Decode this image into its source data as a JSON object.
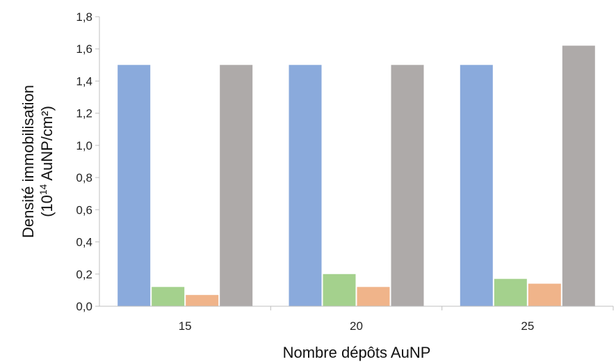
{
  "chart_data": {
    "type": "bar",
    "categories": [
      "15",
      "20",
      "25"
    ],
    "series": [
      {
        "values": [
          1.5,
          1.5,
          1.5
        ],
        "color": "#8aaadc"
      },
      {
        "values": [
          0.12,
          0.2,
          0.17
        ],
        "color": "#a4d18d"
      },
      {
        "values": [
          0.07,
          0.12,
          0.14
        ],
        "color": "#f0b48a"
      },
      {
        "values": [
          1.5,
          1.5,
          1.62
        ],
        "color": "#aeaaa9"
      }
    ],
    "xlabel": "Nombre dépôts AuNP",
    "ylabel_line1": "Densité immobilisation",
    "ylabel_line2_prefix": "(10",
    "ylabel_line2_exponent": "14",
    "ylabel_line2_suffix": " AuNP/cm²)",
    "ylim": [
      0,
      1.8
    ],
    "yticks": [
      "0,0",
      "0,2",
      "0,4",
      "0,6",
      "0,8",
      "1,0",
      "1,2",
      "1,4",
      "1,6",
      "1,8"
    ],
    "grid": false,
    "legend": "none"
  }
}
